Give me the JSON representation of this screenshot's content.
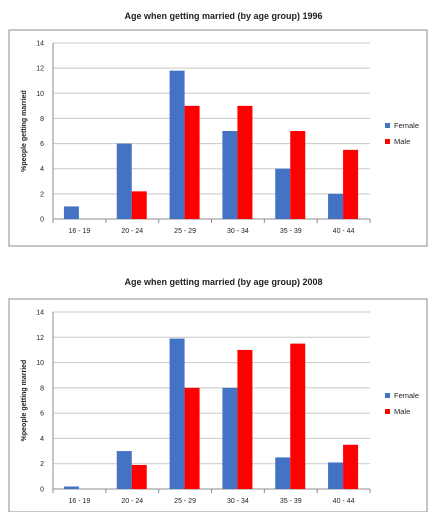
{
  "chart_data": [
    {
      "type": "bar",
      "title": "Age when getting married (by age group) 1996",
      "ylabel": "%people getting married",
      "xlabel": "",
      "categories": [
        "16 - 19",
        "20 - 24",
        "25 - 29",
        "30 - 34",
        "35 - 39",
        "40 - 44"
      ],
      "ylim": [
        0,
        14
      ],
      "yticks": [
        0,
        2,
        4,
        6,
        8,
        10,
        12,
        14
      ],
      "grid": true,
      "legend": "right",
      "series": [
        {
          "name": "Female",
          "color": "#4472c4",
          "values": [
            1,
            6,
            11.8,
            7,
            4,
            2
          ]
        },
        {
          "name": "Male",
          "color": "#ff0000",
          "values": [
            0,
            2.2,
            9,
            9,
            7,
            5.5
          ]
        }
      ]
    },
    {
      "type": "bar",
      "title": "Age when getting married (by age group) 2008",
      "ylabel": "%people getting married",
      "xlabel": "",
      "categories": [
        "16 - 19",
        "20 - 24",
        "25 - 29",
        "30 - 34",
        "35 - 39",
        "40 - 44"
      ],
      "ylim": [
        0,
        14
      ],
      "yticks": [
        0,
        2,
        4,
        6,
        8,
        10,
        12,
        14
      ],
      "grid": true,
      "legend": "right",
      "series": [
        {
          "name": "Female",
          "color": "#4472c4",
          "values": [
            0.2,
            3,
            11.9,
            8,
            2.5,
            2.1
          ]
        },
        {
          "name": "Male",
          "color": "#ff0000",
          "values": [
            0,
            1.9,
            8,
            11,
            11.5,
            3.5
          ]
        }
      ]
    }
  ]
}
